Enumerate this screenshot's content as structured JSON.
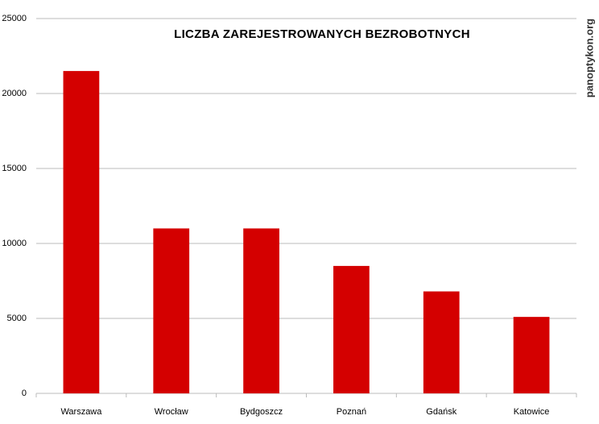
{
  "chart_data": {
    "type": "bar",
    "title": "LICZBA ZAREJESTROWANYCH BEZROBOTNYCH",
    "watermark": "panoptykon.org",
    "categories": [
      "Warszawa",
      "Wrocław",
      "Bydgoszcz",
      "Poznań",
      "Gdańsk",
      "Katowice"
    ],
    "values": [
      21500,
      11000,
      11000,
      8500,
      6800,
      5100
    ],
    "color": "#d40000",
    "ylim": [
      0,
      25000
    ],
    "yticks": [
      0,
      5000,
      10000,
      15000,
      20000,
      25000
    ],
    "grid": true
  }
}
